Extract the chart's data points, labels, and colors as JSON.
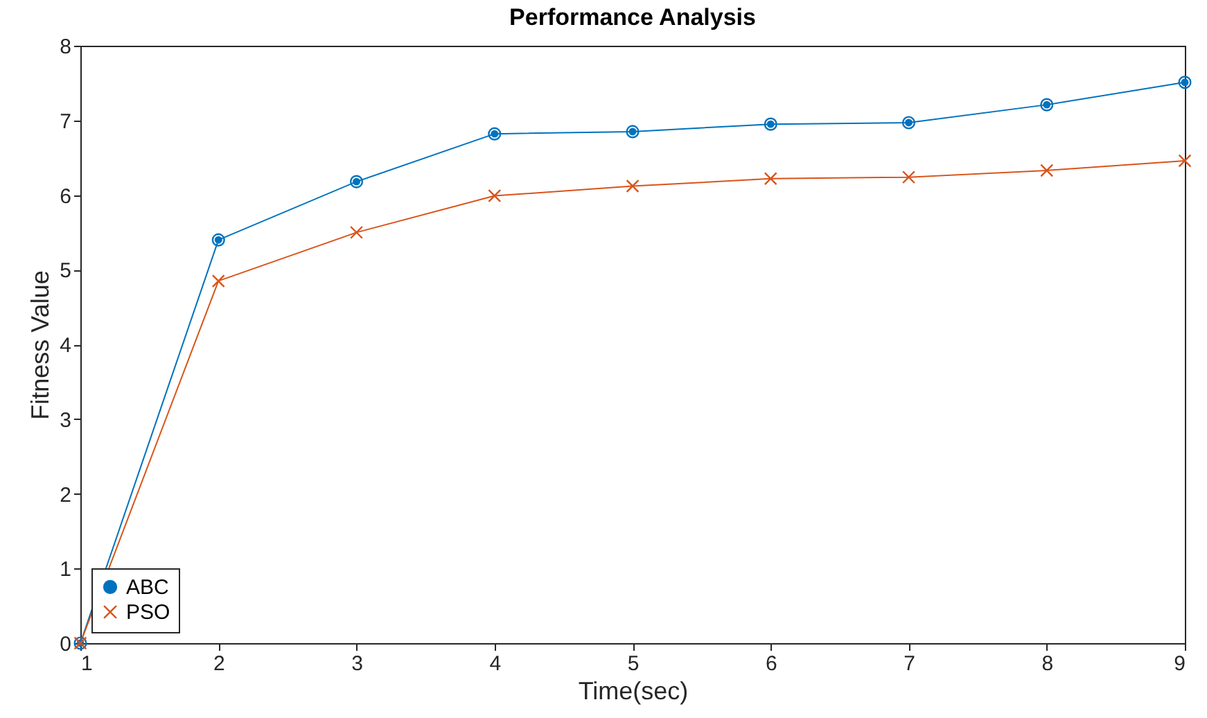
{
  "chart_data": {
    "type": "line",
    "title": "Performance Analysis",
    "xlabel": "Time(sec)",
    "ylabel": "Fitness Value",
    "x": [
      1,
      2,
      3,
      4,
      5,
      6,
      7,
      8,
      9
    ],
    "series": [
      {
        "name": "ABC",
        "color": "#0072bd",
        "marker": "circle",
        "values": [
          0,
          5.4,
          6.18,
          6.82,
          6.85,
          6.95,
          6.97,
          7.21,
          7.51
        ]
      },
      {
        "name": "PSO",
        "color": "#d95319",
        "marker": "cross",
        "values": [
          0,
          4.85,
          5.5,
          5.99,
          6.12,
          6.22,
          6.24,
          6.33,
          6.46
        ]
      }
    ],
    "xlim": [
      1,
      9
    ],
    "ylim": [
      0,
      8
    ],
    "xticks": [
      1,
      2,
      3,
      4,
      5,
      6,
      7,
      8,
      9
    ],
    "yticks": [
      0,
      1,
      2,
      3,
      4,
      5,
      6,
      7,
      8
    ],
    "grid": false,
    "legend": "bottom left",
    "line_style": "solid"
  }
}
